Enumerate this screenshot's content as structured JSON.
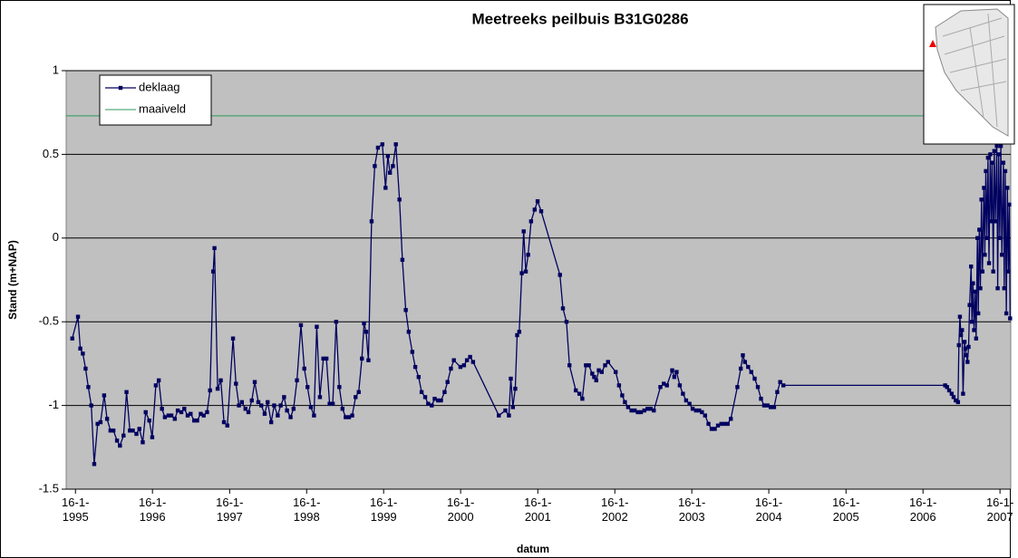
{
  "chart_data": {
    "type": "line",
    "title": "Meetreeks peilbuis B31G0286",
    "x_label": "datum",
    "y_label": "Stand (m+NAP)",
    "xlim": [
      "1994-12-03",
      "2007-03-08"
    ],
    "xticks": [
      {
        "value": "1995-01-16",
        "label": "16-1-1995"
      },
      {
        "value": "1996-01-16",
        "label": "16-1-1996"
      },
      {
        "value": "1997-01-16",
        "label": "16-1-1997"
      },
      {
        "value": "1998-01-16",
        "label": "16-1-1998"
      },
      {
        "value": "1999-01-16",
        "label": "16-1-1999"
      },
      {
        "value": "2000-01-16",
        "label": "16-1-2000"
      },
      {
        "value": "2001-01-16",
        "label": "16-1-2001"
      },
      {
        "value": "2002-01-16",
        "label": "16-1-2002"
      },
      {
        "value": "2003-01-16",
        "label": "16-1-2003"
      },
      {
        "value": "2004-01-16",
        "label": "16-1-2004"
      },
      {
        "value": "2005-01-16",
        "label": "16-1-2005"
      },
      {
        "value": "2006-01-16",
        "label": "16-1-2006"
      },
      {
        "value": "2007-01-16",
        "label": "16-1-2007"
      }
    ],
    "ylim": [
      -1.5,
      1
    ],
    "yticks": [
      -1.5,
      -1,
      -0.5,
      0,
      0.5,
      1
    ],
    "grid": true,
    "legend": "upper left",
    "series": [
      {
        "name": "deklaag",
        "color": "#000060",
        "marker": "square",
        "x": [
          "1995-01-01",
          "1995-01-28",
          "1995-02-08",
          "1995-02-20",
          "1995-03-05",
          "1995-03-18",
          "1995-04-01",
          "1995-04-15",
          "1995-05-01",
          "1995-05-15",
          "1995-06-01",
          "1995-06-15",
          "1995-07-01",
          "1995-07-15",
          "1995-08-01",
          "1995-08-15",
          "1995-09-01",
          "1995-09-15",
          "1995-10-01",
          "1995-10-15",
          "1995-11-01",
          "1995-11-15",
          "1995-12-01",
          "1995-12-15",
          "1996-01-01",
          "1996-01-15",
          "1996-02-01",
          "1996-02-15",
          "1996-03-01",
          "1996-03-15",
          "1996-04-01",
          "1996-04-15",
          "1996-05-01",
          "1996-05-15",
          "1996-06-01",
          "1996-06-15",
          "1996-07-01",
          "1996-07-15",
          "1996-08-01",
          "1996-08-15",
          "1996-09-01",
          "1996-09-15",
          "1996-10-01",
          "1996-10-15",
          "1996-10-30",
          "1996-11-05",
          "1996-11-20",
          "1996-12-05",
          "1996-12-20",
          "1997-01-05",
          "1997-02-01",
          "1997-02-15",
          "1997-03-01",
          "1997-03-15",
          "1997-04-01",
          "1997-04-15",
          "1997-05-01",
          "1997-05-15",
          "1997-06-01",
          "1997-06-15",
          "1997-07-01",
          "1997-07-15",
          "1997-08-01",
          "1997-08-15",
          "1997-09-01",
          "1997-09-15",
          "1997-10-01",
          "1997-10-15",
          "1997-11-01",
          "1997-11-15",
          "1997-12-01",
          "1997-12-20",
          "1998-01-05",
          "1998-01-20",
          "1998-02-05",
          "1998-02-20",
          "1998-03-05",
          "1998-03-20",
          "1998-04-05",
          "1998-04-20",
          "1998-05-05",
          "1998-05-20",
          "1998-06-05",
          "1998-06-20",
          "1998-07-05",
          "1998-07-20",
          "1998-08-05",
          "1998-08-20",
          "1998-09-05",
          "1998-09-20",
          "1998-10-05",
          "1998-10-15",
          "1998-10-25",
          "1998-11-05",
          "1998-11-20",
          "1998-12-05",
          "1998-12-20",
          "1999-01-10",
          "1999-01-25",
          "1999-02-05",
          "1999-02-15",
          "1999-03-01",
          "1999-03-15",
          "1999-04-01",
          "1999-04-15",
          "1999-05-01",
          "1999-05-15",
          "1999-06-01",
          "1999-06-15",
          "1999-07-01",
          "1999-07-15",
          "1999-08-01",
          "1999-08-15",
          "1999-09-01",
          "1999-09-15",
          "1999-10-01",
          "1999-10-15",
          "1999-11-01",
          "1999-11-15",
          "1999-12-01",
          "1999-12-15",
          "2000-01-15",
          "2000-02-01",
          "2000-02-15",
          "2000-03-01",
          "2000-03-15",
          "2000-07-15",
          "2000-08-15",
          "2000-09-01",
          "2000-09-10",
          "2000-09-20",
          "2000-10-01",
          "2000-10-10",
          "2000-10-20",
          "2000-11-01",
          "2000-11-10",
          "2000-11-20",
          "2000-12-01",
          "2000-12-15",
          "2001-01-01",
          "2001-01-15",
          "2001-02-01",
          "2001-05-01",
          "2001-05-15",
          "2001-06-01",
          "2001-06-15",
          "2001-07-15",
          "2001-08-01",
          "2001-08-15",
          "2001-09-01",
          "2001-09-15",
          "2001-10-01",
          "2001-10-10",
          "2001-10-20",
          "2001-11-01",
          "2001-11-15",
          "2001-12-01",
          "2001-12-15",
          "2002-01-20",
          "2002-02-05",
          "2002-02-20",
          "2002-03-05",
          "2002-03-20",
          "2002-04-05",
          "2002-04-20",
          "2002-05-05",
          "2002-05-20",
          "2002-06-05",
          "2002-06-20",
          "2002-07-05",
          "2002-07-20",
          "2002-08-20",
          "2002-09-05",
          "2002-09-20",
          "2002-10-15",
          "2002-10-25",
          "2002-11-05",
          "2002-11-20",
          "2002-12-05",
          "2002-12-20",
          "2003-01-05",
          "2003-01-20",
          "2003-02-05",
          "2003-02-20",
          "2003-03-05",
          "2003-03-20",
          "2003-04-05",
          "2003-04-20",
          "2003-05-05",
          "2003-05-20",
          "2003-06-05",
          "2003-06-20",
          "2003-07-05",
          "2003-07-20",
          "2003-08-20",
          "2003-09-05",
          "2003-09-15",
          "2003-09-25",
          "2003-10-10",
          "2003-10-25",
          "2003-11-10",
          "2003-11-25",
          "2003-12-10",
          "2003-12-25",
          "2004-01-10",
          "2004-01-25",
          "2004-02-10",
          "2004-02-25",
          "2004-03-10",
          "2004-03-25",
          "2006-05-01",
          "2006-05-10",
          "2006-05-20",
          "2006-06-01",
          "2006-06-10",
          "2006-06-20",
          "2006-07-01",
          "2006-07-05",
          "2006-07-10",
          "2006-07-15",
          "2006-07-20",
          "2006-07-25",
          "2006-08-01",
          "2006-08-05",
          "2006-08-10",
          "2006-08-15",
          "2006-08-20",
          "2006-08-25",
          "2006-09-01",
          "2006-09-05",
          "2006-09-10",
          "2006-09-15",
          "2006-09-20",
          "2006-09-25",
          "2006-10-01",
          "2006-10-05",
          "2006-10-10",
          "2006-10-15",
          "2006-10-20",
          "2006-10-25",
          "2006-11-01",
          "2006-11-05",
          "2006-11-10",
          "2006-11-15",
          "2006-11-20",
          "2006-11-25",
          "2006-12-01",
          "2006-12-05",
          "2006-12-10",
          "2006-12-15",
          "2006-12-20",
          "2006-12-25",
          "2007-01-01",
          "2007-01-05",
          "2007-01-10",
          "2007-01-15",
          "2007-01-20",
          "2007-01-25",
          "2007-02-01",
          "2007-02-05",
          "2007-02-10",
          "2007-02-15",
          "2007-02-20",
          "2007-02-25",
          "2007-03-01",
          "2007-03-05"
        ],
        "values": [
          -0.6,
          -0.47,
          -0.66,
          -0.69,
          -0.78,
          -0.89,
          -1.0,
          -1.35,
          -1.11,
          -1.1,
          -0.94,
          -1.08,
          -1.15,
          -1.15,
          -1.21,
          -1.24,
          -1.18,
          -0.92,
          -1.15,
          -1.15,
          -1.17,
          -1.14,
          -1.22,
          -1.04,
          -1.09,
          -1.19,
          -0.88,
          -0.85,
          -1.02,
          -1.07,
          -1.06,
          -1.06,
          -1.08,
          -1.03,
          -1.04,
          -1.02,
          -1.06,
          -1.05,
          -1.09,
          -1.09,
          -1.05,
          -1.06,
          -1.04,
          -0.91,
          -0.2,
          -0.06,
          -0.9,
          -0.85,
          -1.1,
          -1.12,
          -0.6,
          -0.87,
          -1.0,
          -0.98,
          -1.02,
          -1.04,
          -0.97,
          -0.86,
          -0.98,
          -1.0,
          -1.05,
          -0.98,
          -1.1,
          -1.0,
          -1.06,
          -1.0,
          -0.95,
          -1.03,
          -1.07,
          -1.02,
          -0.85,
          -0.52,
          -0.78,
          -0.89,
          -1.01,
          -1.06,
          -0.53,
          -0.95,
          -0.72,
          -0.72,
          -0.99,
          -0.99,
          -0.5,
          -0.89,
          -1.02,
          -1.07,
          -1.07,
          -1.06,
          -0.95,
          -0.92,
          -0.72,
          -0.51,
          -0.56,
          -0.73,
          0.1,
          0.43,
          0.54,
          0.56,
          0.3,
          0.49,
          0.39,
          0.43,
          0.56,
          0.23,
          -0.13,
          -0.43,
          -0.56,
          -0.68,
          -0.77,
          -0.83,
          -0.92,
          -0.95,
          -0.99,
          -1.0,
          -0.96,
          -0.97,
          -0.97,
          -0.92,
          -0.86,
          -0.78,
          -0.73,
          -0.77,
          -0.76,
          -0.73,
          -0.71,
          -0.74,
          -1.06,
          -1.03,
          -1.06,
          -0.84,
          -1.01,
          -0.9,
          -0.58,
          -0.56,
          -0.21,
          0.04,
          -0.2,
          -0.1,
          0.1,
          0.17,
          0.22,
          0.16,
          -0.22,
          -0.42,
          -0.5,
          -0.76,
          -0.91,
          -0.93,
          -0.96,
          -0.76,
          -0.76,
          -0.81,
          -0.83,
          -0.85,
          -0.79,
          -0.8,
          -0.76,
          -0.74,
          -0.8,
          -0.88,
          -0.94,
          -0.98,
          -1.01,
          -1.03,
          -1.03,
          -1.04,
          -1.04,
          -1.03,
          -1.02,
          -1.02,
          -1.03,
          -0.89,
          -0.87,
          -0.88,
          -0.79,
          -0.83,
          -0.8,
          -0.88,
          -0.93,
          -0.97,
          -0.99,
          -1.02,
          -1.03,
          -1.03,
          -1.04,
          -1.06,
          -1.11,
          -1.14,
          -1.14,
          -1.12,
          -1.11,
          -1.11,
          -1.11,
          -1.08,
          -0.89,
          -0.78,
          -0.7,
          -0.74,
          -0.77,
          -0.8,
          -0.84,
          -0.89,
          -0.96,
          -1.0,
          -1.0,
          -1.01,
          -1.01,
          -0.92,
          -0.86,
          -0.88,
          -0.88,
          -0.89,
          -0.91,
          -0.93,
          -0.95,
          -0.97,
          -0.98,
          -0.64,
          -0.47,
          -0.58,
          -0.55,
          -0.93,
          -0.62,
          -0.66,
          -0.7,
          -0.74,
          -0.65,
          -0.4,
          -0.17,
          -0.5,
          -0.27,
          -0.55,
          -0.32,
          -0.6,
          0.0,
          -0.45,
          0.05,
          -0.3,
          0.23,
          -0.2,
          0.3,
          -0.1,
          0.4,
          0.0,
          0.48,
          -0.15,
          0.5,
          0.1,
          0.45,
          -0.2,
          0.52,
          0.1,
          0.55,
          -0.3,
          0.5,
          0.0,
          0.55,
          -0.1,
          0.45,
          -0.3,
          0.4,
          -0.45,
          0.3,
          -0.2,
          0.2,
          -0.48
        ]
      },
      {
        "name": "maaiveld",
        "color": "#2e9a5c",
        "x": [
          "1994-12-03",
          "2007-03-08"
        ],
        "values": [
          0.73,
          0.73
        ]
      }
    ]
  }
}
